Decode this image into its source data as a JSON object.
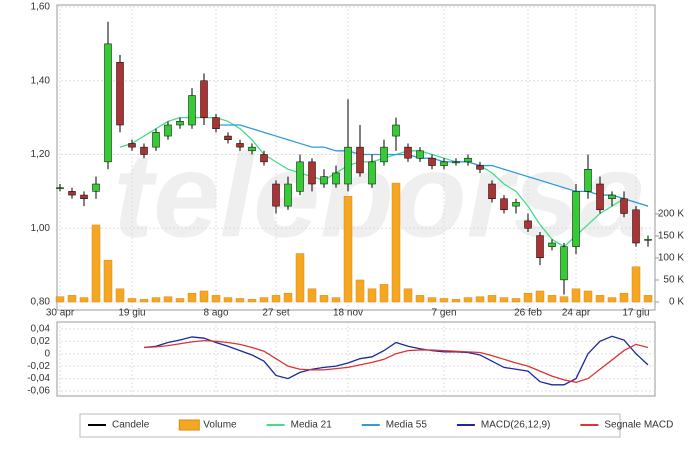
{
  "chart_data": [
    {
      "type": "candlestick",
      "watermark": "teleborsa",
      "categories": [
        "30 apr",
        null,
        null,
        null,
        null,
        null,
        "19 giu",
        null,
        null,
        null,
        null,
        null,
        null,
        "8 ago",
        null,
        null,
        null,
        null,
        "27 set",
        null,
        null,
        null,
        null,
        null,
        "18 nov",
        null,
        null,
        null,
        null,
        null,
        null,
        null,
        "7 gen",
        null,
        null,
        null,
        null,
        null,
        null,
        "26 feb",
        null,
        null,
        null,
        "24 apr",
        null,
        null,
        null,
        null,
        "17 giu",
        null
      ],
      "candles": {
        "name": "Candele",
        "color": "#000000",
        "up_color": "#33cc33",
        "down_color": "#aa3333",
        "open": [
          1.11,
          1.1,
          1.09,
          1.1,
          1.18,
          1.45,
          1.23,
          1.22,
          1.22,
          1.25,
          1.28,
          1.28,
          1.4,
          1.3,
          1.25,
          1.23,
          1.21,
          1.2,
          1.12,
          1.06,
          1.1,
          1.18,
          1.12,
          1.12,
          1.12,
          1.22,
          1.12,
          1.18,
          1.25,
          1.22,
          1.19,
          1.19,
          1.17,
          1.18,
          1.18,
          1.17,
          1.12,
          1.08,
          1.06,
          1.02,
          0.98,
          0.95,
          0.86,
          0.95,
          1.1,
          1.12,
          1.08,
          1.08,
          1.05,
          0.97
        ],
        "high": [
          1.12,
          1.11,
          1.1,
          1.14,
          1.56,
          1.47,
          1.24,
          1.23,
          1.27,
          1.29,
          1.3,
          1.38,
          1.42,
          1.31,
          1.26,
          1.24,
          1.23,
          1.21,
          1.13,
          1.14,
          1.2,
          1.19,
          1.16,
          1.17,
          1.35,
          1.28,
          1.2,
          1.24,
          1.3,
          1.23,
          1.22,
          1.2,
          1.19,
          1.19,
          1.2,
          1.18,
          1.13,
          1.09,
          1.08,
          1.04,
          0.99,
          0.97,
          0.96,
          1.12,
          1.2,
          1.14,
          1.1,
          1.1,
          1.06,
          0.98
        ],
        "low": [
          1.1,
          1.08,
          1.06,
          1.08,
          1.16,
          1.26,
          1.21,
          1.19,
          1.21,
          1.24,
          1.27,
          1.27,
          1.28,
          1.26,
          1.23,
          1.21,
          1.2,
          1.17,
          1.04,
          1.05,
          1.09,
          1.1,
          1.11,
          1.11,
          1.1,
          1.14,
          1.11,
          1.17,
          1.21,
          1.18,
          1.18,
          1.16,
          1.16,
          1.17,
          1.17,
          1.15,
          1.07,
          1.04,
          1.04,
          0.99,
          0.9,
          0.94,
          0.82,
          0.93,
          1.08,
          1.04,
          1.06,
          1.03,
          0.95,
          0.95
        ],
        "close": [
          1.11,
          1.09,
          1.08,
          1.12,
          1.5,
          1.28,
          1.22,
          1.2,
          1.26,
          1.28,
          1.29,
          1.36,
          1.3,
          1.27,
          1.24,
          1.22,
          1.22,
          1.18,
          1.06,
          1.12,
          1.18,
          1.12,
          1.14,
          1.15,
          1.22,
          1.15,
          1.18,
          1.22,
          1.28,
          1.19,
          1.21,
          1.17,
          1.18,
          1.18,
          1.19,
          1.16,
          1.08,
          1.05,
          1.07,
          1.0,
          0.92,
          0.96,
          0.95,
          1.1,
          1.16,
          1.05,
          1.09,
          1.04,
          0.96,
          0.97
        ]
      },
      "volume": {
        "name": "Volume",
        "color": "#f5a623",
        "axis": "y2",
        "values": [
          12000,
          15000,
          10000,
          175000,
          95000,
          30000,
          8000,
          6000,
          10000,
          12000,
          8000,
          20000,
          25000,
          15000,
          10000,
          8000,
          6000,
          10000,
          15000,
          20000,
          110000,
          30000,
          15000,
          10000,
          240000,
          50000,
          30000,
          40000,
          270000,
          30000,
          15000,
          10000,
          8000,
          6000,
          10000,
          12000,
          15000,
          10000,
          8000,
          20000,
          25000,
          15000,
          12000,
          30000,
          25000,
          15000,
          10000,
          20000,
          80000,
          15000
        ]
      },
      "series": [
        {
          "name": "Media 21",
          "color": "#44dd88",
          "values": [
            null,
            null,
            null,
            null,
            null,
            1.22,
            1.23,
            1.25,
            1.27,
            1.29,
            1.3,
            1.3,
            1.3,
            1.3,
            1.29,
            1.27,
            1.24,
            1.2,
            1.18,
            1.16,
            1.15,
            1.14,
            1.13,
            1.15,
            1.17,
            1.18,
            1.18,
            1.19,
            1.2,
            1.21,
            1.21,
            1.2,
            1.19,
            1.18,
            1.18,
            1.17,
            1.15,
            1.12,
            1.1,
            1.06,
            1.01,
            0.97,
            0.95,
            0.98,
            1.01,
            1.04,
            1.06,
            1.08,
            1.07,
            1.06
          ]
        },
        {
          "name": "Media 55",
          "color": "#3399dd",
          "values": [
            null,
            null,
            null,
            null,
            null,
            null,
            null,
            null,
            null,
            null,
            null,
            null,
            null,
            1.28,
            1.28,
            1.28,
            1.27,
            1.26,
            1.25,
            1.24,
            1.23,
            1.22,
            1.22,
            1.21,
            1.21,
            1.2,
            1.2,
            1.2,
            1.2,
            1.2,
            1.19,
            1.19,
            1.18,
            1.18,
            1.18,
            1.17,
            1.17,
            1.16,
            1.15,
            1.14,
            1.13,
            1.12,
            1.11,
            1.1,
            1.1,
            1.09,
            1.09,
            1.08,
            1.07,
            1.06
          ]
        }
      ],
      "ylim": [
        0.8,
        1.6
      ],
      "yticks": [
        {
          "value": 0.8,
          "label": "0,80"
        },
        {
          "value": 1.0,
          "label": "1,00"
        },
        {
          "value": 1.2,
          "label": "1,20"
        },
        {
          "value": 1.4,
          "label": "1,40"
        },
        {
          "value": 1.6,
          "label": "1,60"
        }
      ],
      "y2lim": [
        0,
        670000
      ],
      "y2ticks": [
        {
          "value": 0,
          "label": "0 K"
        },
        {
          "value": 50000,
          "label": "50 K"
        },
        {
          "value": 100000,
          "label": "100 K"
        },
        {
          "value": 150000,
          "label": "150 K"
        },
        {
          "value": 200000,
          "label": "200 K"
        }
      ],
      "grid": true
    },
    {
      "type": "line",
      "series": [
        {
          "name": "MACD(26,12,9)",
          "color": "#1a2a9a",
          "values": [
            null,
            null,
            null,
            null,
            null,
            null,
            null,
            0.01,
            0.012,
            0.018,
            0.022,
            0.027,
            0.025,
            0.018,
            0.012,
            0.005,
            -0.002,
            -0.012,
            -0.035,
            -0.04,
            -0.03,
            -0.025,
            -0.022,
            -0.02,
            -0.015,
            -0.008,
            -0.005,
            0.005,
            0.018,
            0.012,
            0.008,
            0.005,
            0.003,
            0.003,
            0.002,
            -0.002,
            -0.012,
            -0.022,
            -0.025,
            -0.028,
            -0.045,
            -0.05,
            -0.05,
            -0.04,
            0,
            0.02,
            0.028,
            0.022,
            0,
            -0.018
          ]
        },
        {
          "name": "Segnale MACD",
          "color": "#dd3333",
          "values": [
            null,
            null,
            null,
            null,
            null,
            null,
            null,
            0.01,
            0.011,
            0.013,
            0.016,
            0.019,
            0.021,
            0.02,
            0.018,
            0.015,
            0.01,
            0.004,
            -0.008,
            -0.02,
            -0.025,
            -0.026,
            -0.026,
            -0.024,
            -0.022,
            -0.018,
            -0.014,
            -0.009,
            0,
            0.005,
            0.006,
            0.006,
            0.005,
            0.004,
            0.003,
            0.002,
            -0.003,
            -0.009,
            -0.015,
            -0.02,
            -0.028,
            -0.036,
            -0.042,
            -0.046,
            -0.04,
            -0.025,
            -0.01,
            0.005,
            0.015,
            0.01
          ]
        }
      ],
      "ylim": [
        -0.068,
        0.051
      ],
      "yticks": [
        {
          "value": 0.04,
          "label": "0,04"
        },
        {
          "value": 0.02,
          "label": "0,02"
        },
        0,
        {
          "value": -0.02,
          "label": "-0,02"
        },
        {
          "value": -0.04,
          "label": "-0,04"
        },
        {
          "value": -0.06,
          "label": "-0,06"
        }
      ],
      "grid": true
    }
  ]
}
